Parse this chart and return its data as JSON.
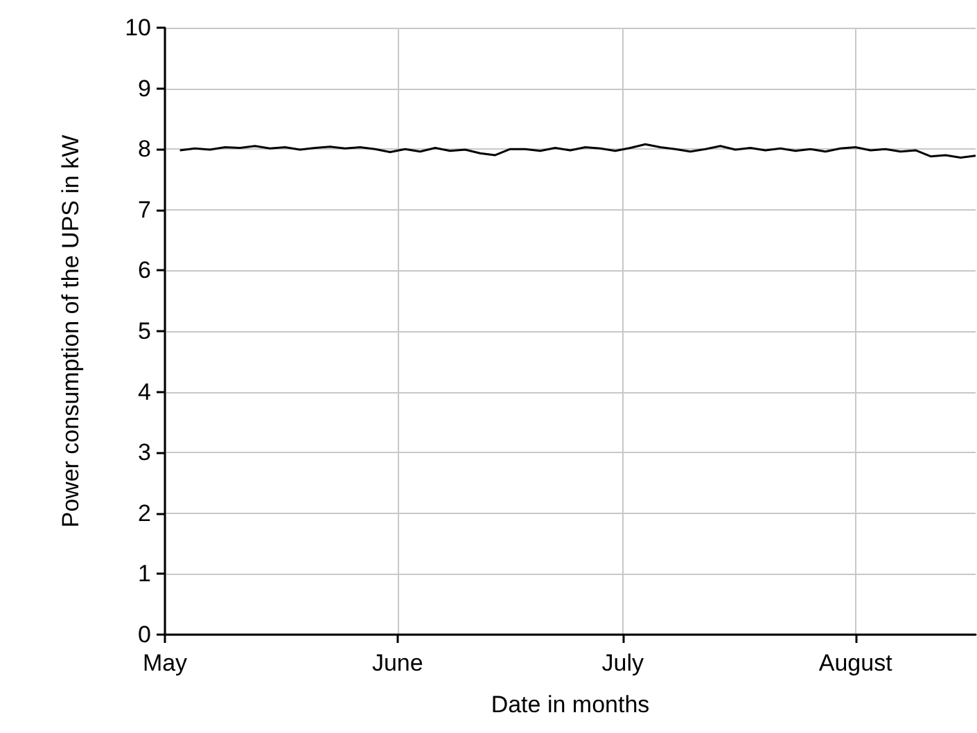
{
  "chart_data": {
    "type": "line",
    "xlabel": "Date in months",
    "ylabel": "Power consumption of the UPS in kW",
    "x": [
      "--05-03",
      "--05-05",
      "--05-07",
      "--05-09",
      "--05-11",
      "--05-13",
      "--05-15",
      "--05-17",
      "--05-19",
      "--05-21",
      "--05-23",
      "--05-25",
      "--05-27",
      "--05-29",
      "--05-31",
      "--06-02",
      "--06-04",
      "--06-06",
      "--06-08",
      "--06-10",
      "--06-12",
      "--06-14",
      "--06-16",
      "--06-18",
      "--06-20",
      "--06-22",
      "--06-24",
      "--06-26",
      "--06-28",
      "--06-30",
      "--07-02",
      "--07-04",
      "--07-06",
      "--07-08",
      "--07-10",
      "--07-12",
      "--07-14",
      "--07-16",
      "--07-18",
      "--07-20",
      "--07-22",
      "--07-24",
      "--07-26",
      "--07-28",
      "--07-30",
      "--08-01",
      "--08-03",
      "--08-05",
      "--08-07",
      "--08-09",
      "--08-11",
      "--08-13",
      "--08-15",
      "--08-17"
    ],
    "series": [
      {
        "color": "#000000",
        "values": [
          7.98,
          8.01,
          7.99,
          8.03,
          8.02,
          8.05,
          8.01,
          8.03,
          7.99,
          8.02,
          8.04,
          8.01,
          8.03,
          8.0,
          7.95,
          8.0,
          7.96,
          8.02,
          7.97,
          7.99,
          7.93,
          7.9,
          8.0,
          8.0,
          7.97,
          8.02,
          7.98,
          8.03,
          8.01,
          7.97,
          8.02,
          8.08,
          8.03,
          8.0,
          7.96,
          8.0,
          8.05,
          7.99,
          8.02,
          7.98,
          8.01,
          7.97,
          8.0,
          7.96,
          8.01,
          8.03,
          7.98,
          8.0,
          7.96,
          7.98,
          7.88,
          7.9,
          7.86,
          7.89
        ]
      }
    ],
    "xlim": [
      "--05-01",
      "--08-17"
    ],
    "xticks": [
      {
        "value": "--05-01",
        "label": "May"
      },
      {
        "value": "--06-01",
        "label": "June"
      },
      {
        "value": "--07-01",
        "label": "July"
      },
      {
        "value": "--08-01",
        "label": "August"
      }
    ],
    "ylim": [
      0,
      10
    ],
    "yticks": [
      0,
      1,
      2,
      3,
      4,
      5,
      6,
      7,
      8,
      9,
      10
    ],
    "grid": true,
    "legend": false,
    "marker": "none",
    "line_style": "solid"
  }
}
